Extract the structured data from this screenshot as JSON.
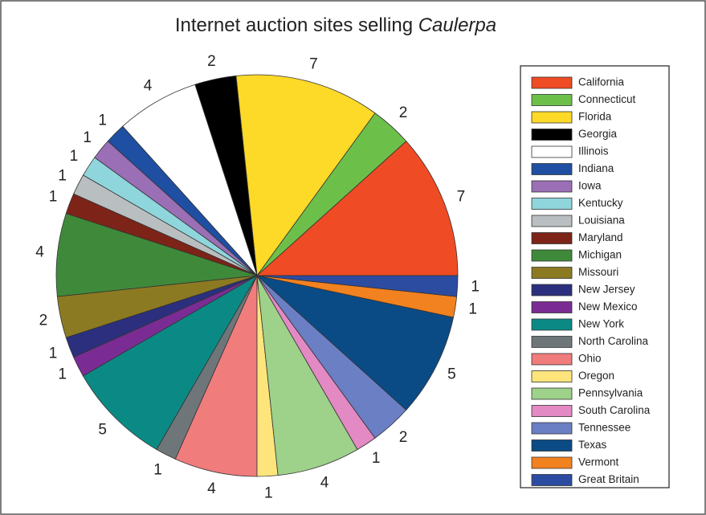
{
  "chart_data": {
    "type": "pie",
    "title": [
      "Internet auction sites selling",
      "Caulerpa"
    ],
    "categories": [
      "California",
      "Connecticut",
      "Florida",
      "Georgia",
      "Illinois",
      "Indiana",
      "Iowa",
      "Kentucky",
      "Louisiana",
      "Maryland",
      "Michigan",
      "Missouri",
      "New Jersey",
      "New Mexico",
      "New York",
      "North Carolina",
      "Ohio",
      "Oregon",
      "Pennsylvania",
      "South Carolina",
      "Tennessee",
      "Texas",
      "Vermont",
      "Great Britain"
    ],
    "values": [
      7,
      2,
      7,
      2,
      4,
      1,
      1,
      1,
      1,
      1,
      4,
      2,
      1,
      1,
      5,
      1,
      4,
      1,
      4,
      1,
      2,
      5,
      1,
      1
    ],
    "colors": [
      "#ef4b24",
      "#6cc04a",
      "#fdd928",
      "#000000",
      "#ffffff",
      "#1e4fa2",
      "#9a6fb5",
      "#8fd6dc",
      "#b9bec1",
      "#7d2318",
      "#3f8a3a",
      "#8c7a22",
      "#2b2f7e",
      "#7a2c94",
      "#0b8a85",
      "#6f7679",
      "#f07c7c",
      "#fde57c",
      "#9ed18a",
      "#e389c3",
      "#6a7fc4",
      "#0a4b86",
      "#f2811f",
      "#2c4ca1"
    ],
    "legend": "right"
  }
}
